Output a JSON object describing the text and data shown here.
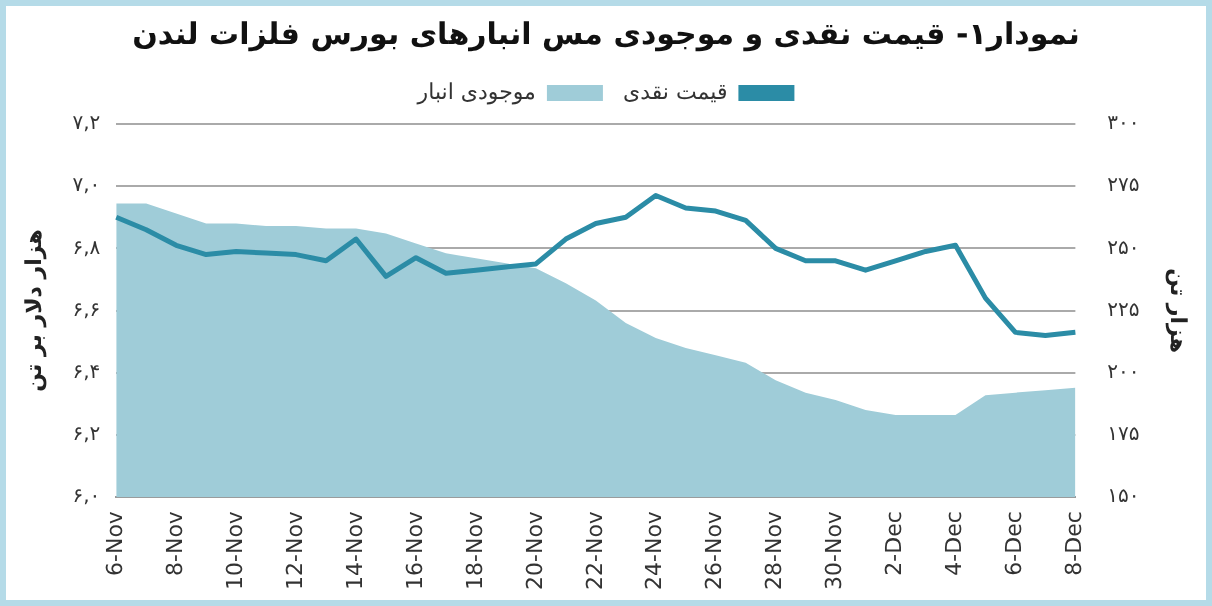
{
  "chart_data": {
    "type": "line",
    "title": "نمودار۱- قیمت نقدی و موجودی مس انبارهای بورس فلزات لندن",
    "ylabel": "هزار دلار بر تن",
    "y2label": "هزار تن",
    "categories": [
      "6-Nov",
      null,
      "8-Nov",
      null,
      "10-Nov",
      null,
      "12-Nov",
      null,
      "14-Nov",
      null,
      "16-Nov",
      null,
      "18-Nov",
      null,
      "20-Nov",
      null,
      "22-Nov",
      null,
      "24-Nov",
      null,
      "26-Nov",
      null,
      "28-Nov",
      null,
      "30-Nov",
      null,
      "2-Dec",
      null,
      "4-Dec",
      null,
      "6-Dec",
      null,
      "8-Dec"
    ],
    "series": [
      {
        "name": "قیمت نقدی",
        "type": "line",
        "color": "#2b8ca6",
        "values": [
          6.9,
          6.86,
          6.81,
          6.78,
          6.79,
          6.785,
          6.78,
          6.76,
          6.83,
          6.71,
          6.77,
          6.72,
          6.73,
          6.74,
          6.75,
          6.83,
          6.88,
          6.9,
          6.97,
          6.93,
          6.92,
          6.89,
          6.8,
          6.76,
          6.76,
          6.73,
          6.76,
          6.79,
          6.81,
          6.64,
          6.53,
          6.52,
          6.53
        ]
      },
      {
        "name": "موجودی انبار",
        "type": "area",
        "axis": "y2",
        "color": "#9fccd8",
        "values": [
          268,
          268,
          264,
          260,
          260,
          259,
          259,
          258,
          258,
          256,
          252,
          248,
          246,
          244,
          242,
          236,
          229,
          220,
          214,
          210,
          207,
          204,
          197,
          192,
          189,
          185,
          183,
          183,
          183,
          191,
          192,
          193,
          194
        ]
      }
    ],
    "ylim": [
      6.0,
      7.2
    ],
    "yticks": [
      {
        "value": 6.0,
        "label": "۶,۰"
      },
      {
        "value": 6.2,
        "label": "۶,۲"
      },
      {
        "value": 6.4,
        "label": "۶,۴"
      },
      {
        "value": 6.6,
        "label": "۶,۶"
      },
      {
        "value": 6.8,
        "label": "۶,۸"
      },
      {
        "value": 7.0,
        "label": "۷,۰"
      },
      {
        "value": 7.2,
        "label": "۷,۲"
      }
    ],
    "y2lim": [
      150,
      300
    ],
    "y2ticks": [
      {
        "value": 150,
        "label": "۱۵۰"
      },
      {
        "value": 175,
        "label": "۱۷۵"
      },
      {
        "value": 200,
        "label": "۲۰۰"
      },
      {
        "value": 225,
        "label": "۲۲۵"
      },
      {
        "value": 250,
        "label": "۲۵۰"
      },
      {
        "value": 275,
        "label": "۲۷۵"
      },
      {
        "value": 300,
        "label": "۳۰۰"
      }
    ],
    "grid": "y",
    "legend": "top",
    "marker": "none",
    "line_style": "solid"
  }
}
